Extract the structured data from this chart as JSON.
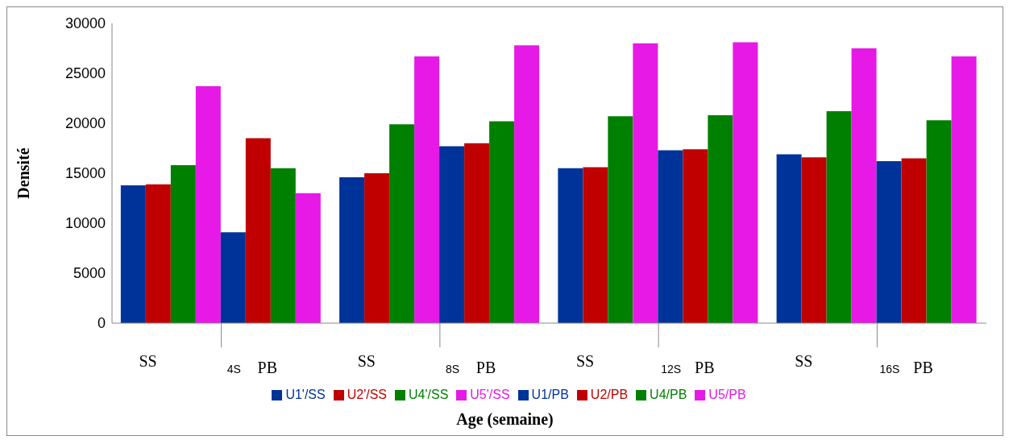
{
  "chart_data": {
    "type": "bar",
    "xlabel": "Age (semaine)",
    "ylabel": "Densité",
    "categories": [
      "4S",
      "8S",
      "12S",
      "16S"
    ],
    "annotations": [
      "SS",
      "PB"
    ],
    "series": [
      {
        "name": "U1'/SS",
        "color": "#003399",
        "values": [
          13800,
          14600,
          15500,
          16900
        ]
      },
      {
        "name": "U2'/SS",
        "color": "#c00000",
        "values": [
          13900,
          15000,
          15600,
          16600
        ]
      },
      {
        "name": "U4'/SS",
        "color": "#008000",
        "values": [
          15800,
          19900,
          20700,
          21200
        ]
      },
      {
        "name": "U5'/SS",
        "color": "#e619e6",
        "values": [
          23700,
          26700,
          28000,
          27500
        ]
      },
      {
        "name": "U1/PB",
        "color": "#003399",
        "values": [
          9100,
          17700,
          17300,
          16200
        ]
      },
      {
        "name": "U2/PB",
        "color": "#c00000",
        "values": [
          18500,
          18000,
          17400,
          16500
        ]
      },
      {
        "name": "U4/PB",
        "color": "#008000",
        "values": [
          15500,
          20200,
          20800,
          20300
        ]
      },
      {
        "name": "U5/PB",
        "color": "#e619e6",
        "values": [
          13000,
          27800,
          28100,
          26700
        ]
      }
    ],
    "ylim": [
      0,
      30000
    ],
    "yticks": [
      0,
      5000,
      10000,
      15000,
      20000,
      25000,
      30000
    ],
    "grid": false,
    "legend": "bottom"
  }
}
